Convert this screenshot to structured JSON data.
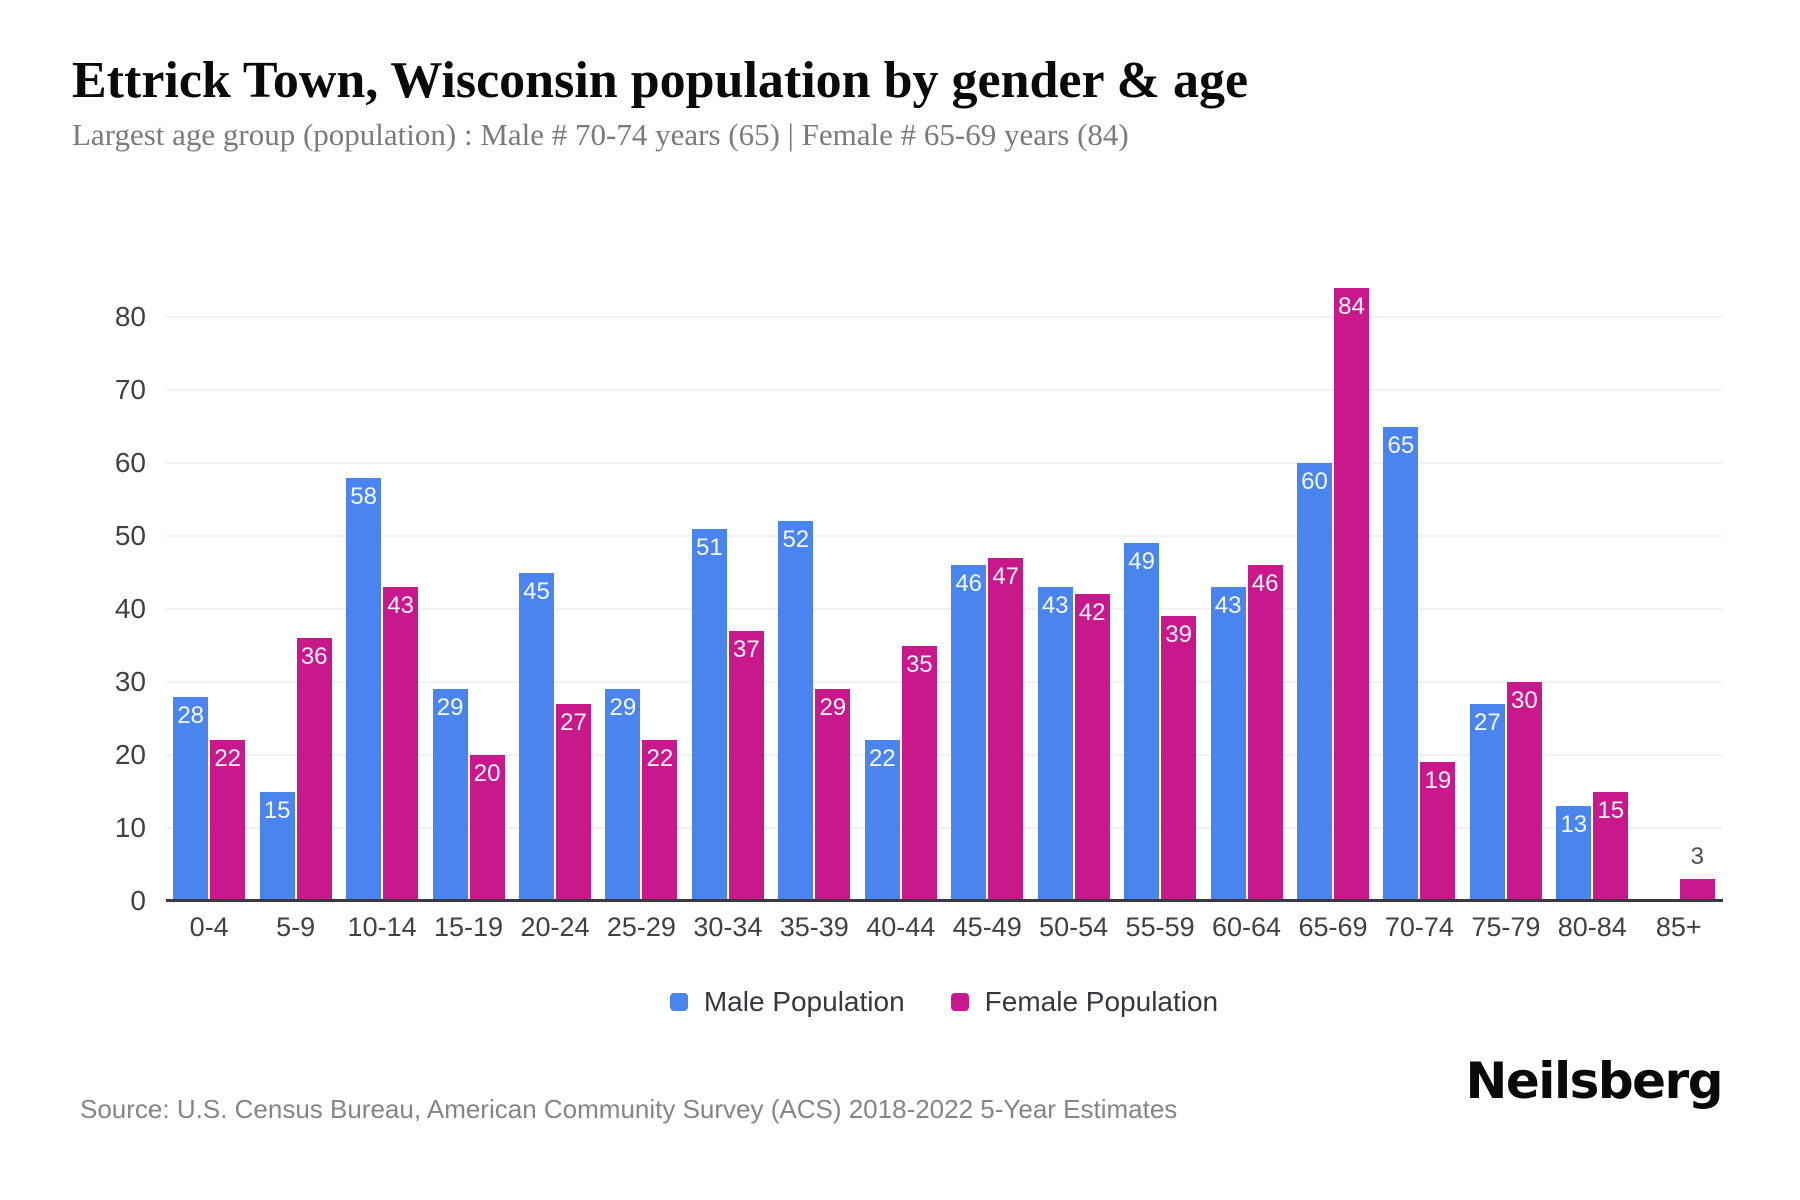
{
  "header": {
    "title": "Ettrick Town, Wisconsin population by gender & age",
    "subtitle": "Largest age group (population) : Male # 70-74 years (65) | Female # 65-69 years (84)"
  },
  "chart_data": {
    "type": "bar",
    "categories": [
      "0-4",
      "5-9",
      "10-14",
      "15-19",
      "20-24",
      "25-29",
      "30-34",
      "35-39",
      "40-44",
      "45-49",
      "50-54",
      "55-59",
      "60-64",
      "65-69",
      "70-74",
      "75-79",
      "80-84",
      "85+"
    ],
    "series": [
      {
        "name": "Male Population",
        "color": "#4A85EF",
        "values": [
          28,
          15,
          58,
          29,
          45,
          29,
          51,
          52,
          22,
          46,
          43,
          49,
          43,
          60,
          65,
          27,
          13,
          0
        ]
      },
      {
        "name": "Female Population",
        "color": "#C9188B",
        "values": [
          22,
          36,
          43,
          20,
          27,
          22,
          37,
          29,
          35,
          47,
          42,
          39,
          46,
          84,
          19,
          30,
          15,
          3
        ]
      }
    ],
    "xlabel": "",
    "ylabel": "",
    "ylim": [
      0,
      80
    ],
    "yticks": [
      0,
      10,
      20,
      30,
      40,
      50,
      60,
      70,
      80
    ],
    "grid": true,
    "legend_position": "bottom",
    "value_labels": true
  },
  "footer": {
    "source": "Source: U.S. Census Bureau, American Community Survey (ACS) 2018-2022 5-Year Estimates",
    "logo_text": "Neilsberg"
  },
  "colors": {
    "male": "#4A85EF",
    "female": "#C9188B",
    "gridline": "#F1F1F3",
    "axis_line": "#3A3A3E",
    "tick_label": "#414141",
    "inside_value_label": "#FFFFFF",
    "outside_value_label": "#4D4D4D"
  }
}
